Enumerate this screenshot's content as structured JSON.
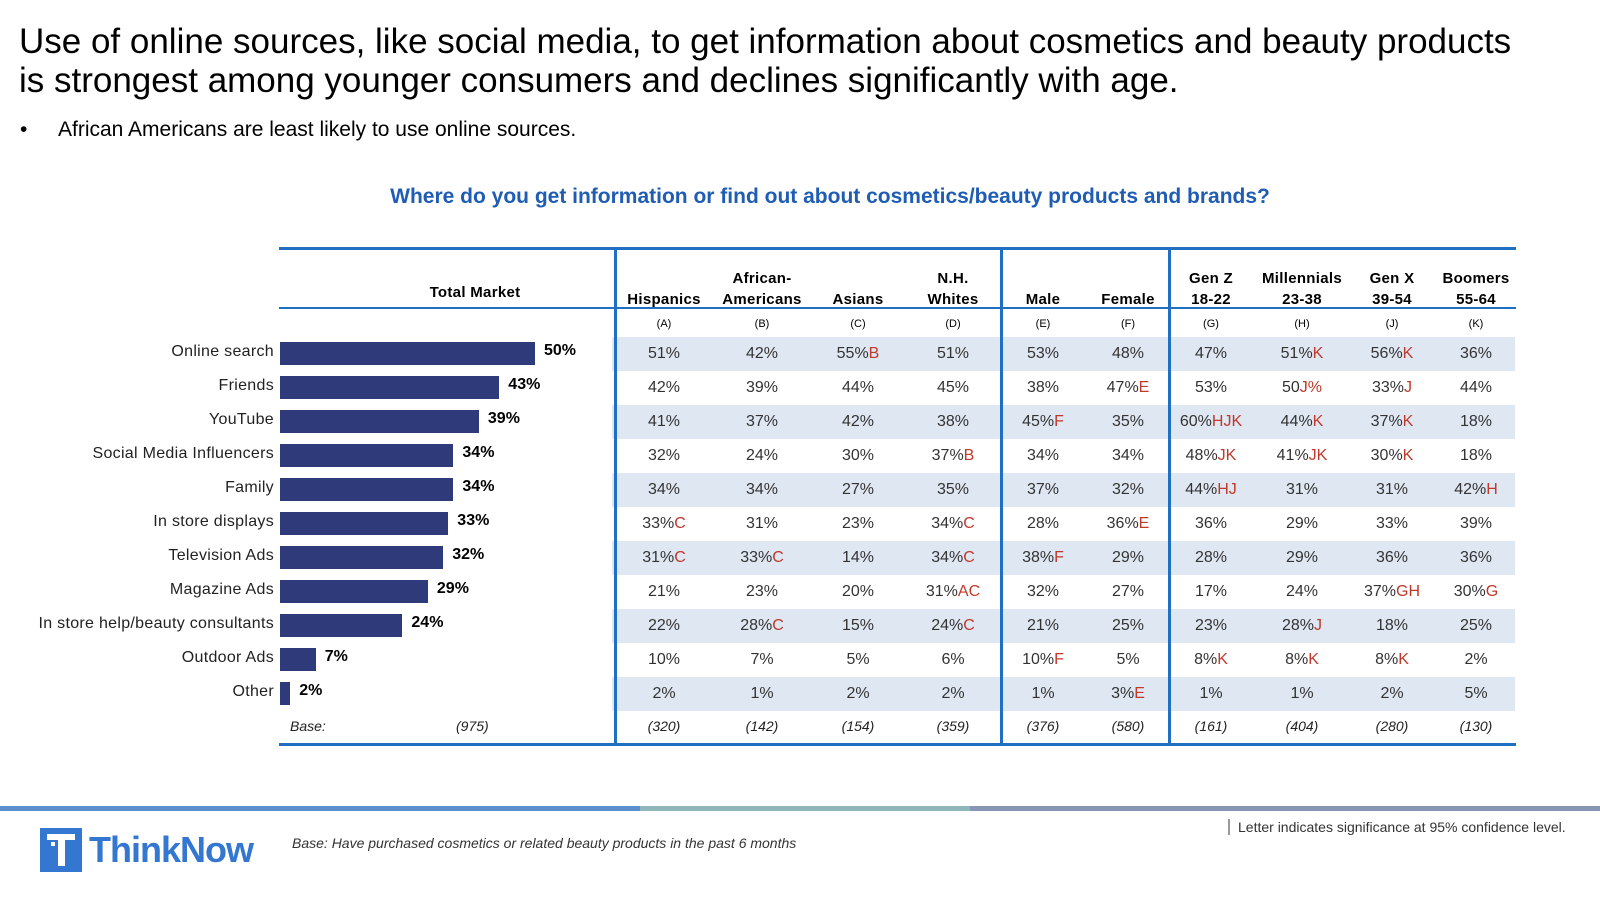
{
  "title": {
    "line1": "Use of online sources, like social media, to get information about cosmetics and beauty products",
    "line2": "is strongest among younger consumers and declines significantly with age."
  },
  "bullet": {
    "dot": "•",
    "text": "African Americans are least likely to use online sources."
  },
  "question": "Where do you get information or find out about cosmetics/beauty products and brands?",
  "columns": [
    {
      "line1": "",
      "line2": "Hispanics",
      "letter": "(A)",
      "base": "(320)"
    },
    {
      "line1": "African-",
      "line2": "Americans",
      "letter": "(B)",
      "base": "(142)"
    },
    {
      "line1": "",
      "line2": "Asians",
      "letter": "(C)",
      "base": "(154)"
    },
    {
      "line1": "N.H.",
      "line2": "Whites",
      "letter": "(D)",
      "base": "(359)"
    },
    {
      "line1": "",
      "line2": "Male",
      "letter": "(E)",
      "base": "(376)"
    },
    {
      "line1": "",
      "line2": "Female",
      "letter": "(F)",
      "base": "(580)"
    },
    {
      "line1": "Gen Z",
      "line2": "18-22",
      "letter": "(G)",
      "base": "(161)"
    },
    {
      "line1": "Millennials",
      "line2": "23-38",
      "letter": "(H)",
      "base": "(404)"
    },
    {
      "line1": "Gen X",
      "line2": "39-54",
      "letter": "(J)",
      "base": "(280)"
    },
    {
      "line1": "Boomers",
      "line2": "55-64",
      "letter": "(K)",
      "base": "(130)"
    }
  ],
  "total_market": {
    "label": "Total Market",
    "base_label": "Base:",
    "base": "(975)"
  },
  "table": {
    "rows": [
      {
        "label": "Online search",
        "cells": [
          [
            "51%",
            ""
          ],
          [
            "42%",
            ""
          ],
          [
            "55%",
            "B"
          ],
          [
            "51%",
            ""
          ],
          [
            "53%",
            ""
          ],
          [
            "48%",
            ""
          ],
          [
            "47%",
            ""
          ],
          [
            "51%",
            "K"
          ],
          [
            "56%",
            "K"
          ],
          [
            "36%",
            ""
          ]
        ]
      },
      {
        "label": "Friends",
        "cells": [
          [
            "42%",
            ""
          ],
          [
            "39%",
            ""
          ],
          [
            "44%",
            ""
          ],
          [
            "45%",
            ""
          ],
          [
            "38%",
            ""
          ],
          [
            "47%",
            "E"
          ],
          [
            "53%",
            ""
          ],
          [
            "50",
            "J%"
          ],
          [
            "33%",
            "J"
          ],
          [
            "44%",
            ""
          ]
        ]
      },
      {
        "label": "YouTube",
        "cells": [
          [
            "41%",
            ""
          ],
          [
            "37%",
            ""
          ],
          [
            "42%",
            ""
          ],
          [
            "38%",
            ""
          ],
          [
            "45%",
            "F"
          ],
          [
            "35%",
            ""
          ],
          [
            "60%",
            "HJK"
          ],
          [
            "44%",
            "K"
          ],
          [
            "37%",
            "K"
          ],
          [
            "18%",
            ""
          ]
        ]
      },
      {
        "label": "Social Media Influencers",
        "cells": [
          [
            "32%",
            ""
          ],
          [
            "24%",
            ""
          ],
          [
            "30%",
            ""
          ],
          [
            "37%",
            "B"
          ],
          [
            "34%",
            ""
          ],
          [
            "34%",
            ""
          ],
          [
            "48%",
            "JK"
          ],
          [
            "41%",
            "JK"
          ],
          [
            "30%",
            "K"
          ],
          [
            "18%",
            ""
          ]
        ]
      },
      {
        "label": "Family",
        "cells": [
          [
            "34%",
            ""
          ],
          [
            "34%",
            ""
          ],
          [
            "27%",
            ""
          ],
          [
            "35%",
            ""
          ],
          [
            "37%",
            ""
          ],
          [
            "32%",
            ""
          ],
          [
            "44%",
            "HJ"
          ],
          [
            "31%",
            ""
          ],
          [
            "31%",
            ""
          ],
          [
            "42%",
            "H"
          ]
        ]
      },
      {
        "label": "In store displays",
        "cells": [
          [
            "33%",
            "C"
          ],
          [
            "31%",
            ""
          ],
          [
            "23%",
            ""
          ],
          [
            "34%",
            "C"
          ],
          [
            "28%",
            ""
          ],
          [
            "36%",
            "E"
          ],
          [
            "36%",
            ""
          ],
          [
            "29%",
            ""
          ],
          [
            "33%",
            ""
          ],
          [
            "39%",
            ""
          ]
        ]
      },
      {
        "label": "Television Ads",
        "cells": [
          [
            "31%",
            "C"
          ],
          [
            "33%",
            "C"
          ],
          [
            "14%",
            ""
          ],
          [
            "34%",
            "C"
          ],
          [
            "38%",
            "F"
          ],
          [
            "29%",
            ""
          ],
          [
            "28%",
            ""
          ],
          [
            "29%",
            ""
          ],
          [
            "36%",
            ""
          ],
          [
            "36%",
            ""
          ]
        ]
      },
      {
        "label": "Magazine Ads",
        "cells": [
          [
            "21%",
            ""
          ],
          [
            "23%",
            ""
          ],
          [
            "20%",
            ""
          ],
          [
            "31%",
            "AC"
          ],
          [
            "32%",
            ""
          ],
          [
            "27%",
            ""
          ],
          [
            "17%",
            ""
          ],
          [
            "24%",
            ""
          ],
          [
            "37%",
            "GH"
          ],
          [
            "30%",
            "G"
          ]
        ]
      },
      {
        "label": "In store help/beauty consultants",
        "cells": [
          [
            "22%",
            ""
          ],
          [
            "28%",
            "C"
          ],
          [
            "15%",
            ""
          ],
          [
            "24%",
            "C"
          ],
          [
            "21%",
            ""
          ],
          [
            "25%",
            ""
          ],
          [
            "23%",
            ""
          ],
          [
            "28%",
            "J"
          ],
          [
            "18%",
            ""
          ],
          [
            "25%",
            ""
          ]
        ]
      },
      {
        "label": "Outdoor Ads",
        "cells": [
          [
            "10%",
            ""
          ],
          [
            "7%",
            ""
          ],
          [
            "5%",
            ""
          ],
          [
            "6%",
            ""
          ],
          [
            "10%",
            "F"
          ],
          [
            "5%",
            ""
          ],
          [
            "8%",
            "K"
          ],
          [
            "8%",
            "K"
          ],
          [
            "8%",
            "K"
          ],
          [
            "2%",
            ""
          ]
        ]
      },
      {
        "label": "Other",
        "cells": [
          [
            "2%",
            ""
          ],
          [
            "1%",
            ""
          ],
          [
            "2%",
            ""
          ],
          [
            "2%",
            ""
          ],
          [
            "1%",
            ""
          ],
          [
            "3%",
            "E"
          ],
          [
            "1%",
            ""
          ],
          [
            "1%",
            ""
          ],
          [
            "2%",
            ""
          ],
          [
            "5%",
            ""
          ]
        ]
      }
    ]
  },
  "chart_data": {
    "type": "bar",
    "orientation": "horizontal",
    "title": "Total Market",
    "categories": [
      "Online search",
      "Friends",
      "YouTube",
      "Social Media Influencers",
      "Family",
      "In store displays",
      "Television Ads",
      "Magazine Ads",
      "In store help/beauty consultants",
      "Outdoor Ads",
      "Other"
    ],
    "values": [
      50,
      43,
      39,
      34,
      34,
      33,
      32,
      29,
      24,
      7,
      2
    ],
    "value_labels": [
      "50%",
      "43%",
      "39%",
      "34%",
      "34%",
      "33%",
      "32%",
      "29%",
      "24%",
      "7%",
      "2%"
    ],
    "xlim": [
      0,
      100
    ],
    "grid": false,
    "legend": "none"
  },
  "colors": {
    "bar": "#2f3a7b",
    "rule": "#1f6fc2",
    "stripe": "#dfe7f3",
    "significance": "#c0392b",
    "question": "#1f5cb4",
    "footer_band": [
      "#5b8fd0",
      "#8fb6b9",
      "#8796b4"
    ]
  },
  "footer": {
    "logo_text": "ThinkNow",
    "logo_glyph": "T",
    "base_note": "Base: Have purchased cosmetics or related beauty products in the past 6 months",
    "sig_note": "Letter indicates significance at 95% confidence level."
  }
}
